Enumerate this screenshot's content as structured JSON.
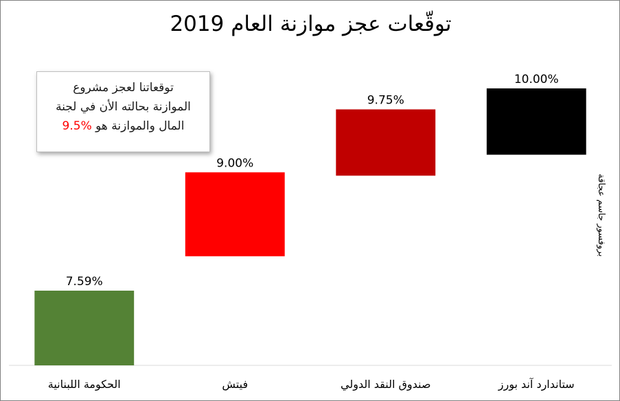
{
  "chart_data": {
    "type": "bar",
    "title": "توقّعات عجز موازنة العام 2019",
    "categories": [
      "الحكومة اللبنانية",
      "فيتش",
      "صندوق النقد الدولي",
      "ستاندارد آند بورز"
    ],
    "data_labels": [
      "7.59%",
      "9.00%",
      "9.75%",
      "10.00%"
    ],
    "floating_bars": [
      {
        "bottom": 6.7,
        "top": 7.59
      },
      {
        "bottom": 8.0,
        "top": 9.0
      },
      {
        "bottom": 8.96,
        "top": 9.75
      },
      {
        "bottom": 9.21,
        "top": 10.0
      }
    ],
    "colors": [
      "#548235",
      "#ff0000",
      "#c00000",
      "#000000"
    ],
    "ylim": [
      6.7,
      10.8
    ],
    "grid": false,
    "legend": "none",
    "annotation": {
      "lines": [
        "توقعاتنا لعجز مشروع",
        "الموازنة بحالته الأن في لجنة",
        "المال والموازنة هو"
      ],
      "highlight": "%9.5"
    },
    "side_label": "بروفسور جاسم عجاقة"
  }
}
